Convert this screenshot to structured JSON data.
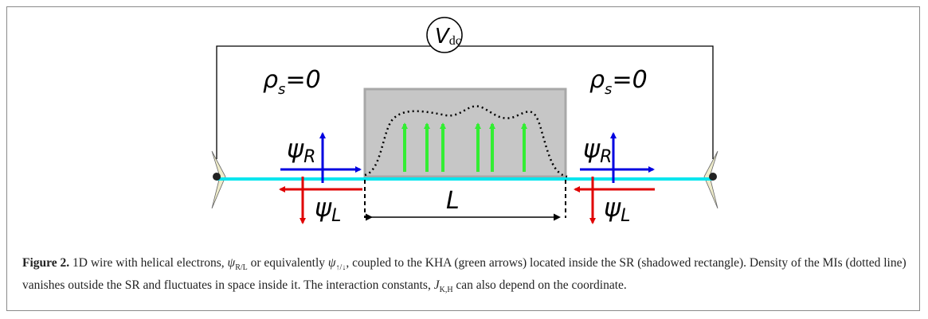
{
  "figure": {
    "source": {
      "symbol": "V",
      "sub": "dc"
    },
    "density_left": {
      "symbol": "ρ",
      "sub": "s",
      "rest": "=0"
    },
    "density_right": {
      "symbol": "ρ",
      "sub": "s",
      "rest": "=0"
    },
    "psi_right_left": {
      "symbol": "ψ",
      "sub": "R"
    },
    "psi_left_left": {
      "symbol": "ψ",
      "sub": "L"
    },
    "psi_right_right": {
      "symbol": "ψ",
      "sub": "R"
    },
    "psi_left_right": {
      "symbol": "ψ",
      "sub": "L"
    },
    "length": "L"
  },
  "caption": {
    "label": "Figure 2.",
    "t1": " 1D wire with helical electrons, ",
    "s1": "ψ",
    "s1sub": "R/L",
    "t2": " or equivalently ",
    "s2": "ψ",
    "s2sub": "↑/↓",
    "t3": ", coupled to the KHA (green arrows) located inside the SR (shadowed rectangle). Density of the MIs (dotted line) vanishes outside the SR and fluctuates in space inside it. The interaction constants, ",
    "s3": "J",
    "s3sub": "K,H",
    "t4": " can also depend on the coordinate."
  }
}
